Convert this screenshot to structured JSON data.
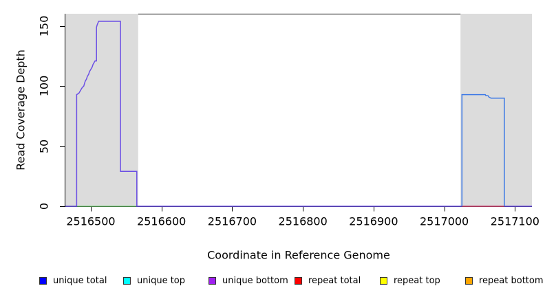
{
  "chart_data": {
    "type": "line",
    "title": "",
    "xlabel": "Coordinate in Reference Genome",
    "ylabel": "Read Coverage Depth",
    "xlim": [
      2516464,
      2517124
    ],
    "ylim": [
      0,
      160.3
    ],
    "x_ticks": [
      2516500,
      2516600,
      2516700,
      2516800,
      2516900,
      2517000,
      2517100
    ],
    "y_ticks": [
      0,
      50,
      100,
      150
    ],
    "grid": "off",
    "legend_position": "bottom",
    "frame_color": "#4d4d4d",
    "axis_color": "#000000",
    "shaded_regions": [
      {
        "name": "repeat-region-left",
        "x0": 2516464,
        "x1": 2516567,
        "color": "#dcdcdc"
      },
      {
        "name": "repeat-region-right",
        "x0": 2517023,
        "x1": 2517124,
        "color": "#dcdcdc"
      }
    ],
    "series": [
      {
        "name": "zero-baseline-left-green",
        "color": "#6fcf6f",
        "width": 1.2,
        "points": [
          [
            2516464,
            0
          ],
          [
            2516567,
            0
          ]
        ]
      },
      {
        "name": "unique-coverage-left-and-baseline",
        "color": "#6b4fe4",
        "width": 1.5,
        "points": [
          [
            2516464,
            0
          ],
          [
            2516480,
            0
          ],
          [
            2516480,
            93
          ],
          [
            2516483,
            94
          ],
          [
            2516484,
            95
          ],
          [
            2516485,
            96
          ],
          [
            2516487,
            98
          ],
          [
            2516488,
            99
          ],
          [
            2516490,
            100
          ],
          [
            2516491,
            102
          ],
          [
            2516492,
            104
          ],
          [
            2516494,
            106
          ],
          [
            2516495,
            108
          ],
          [
            2516497,
            110
          ],
          [
            2516498,
            112
          ],
          [
            2516500,
            114
          ],
          [
            2516502,
            116
          ],
          [
            2516503,
            118
          ],
          [
            2516505,
            120
          ],
          [
            2516506,
            121
          ],
          [
            2516508,
            121
          ],
          [
            2516508,
            149
          ],
          [
            2516509,
            151
          ],
          [
            2516511,
            154
          ],
          [
            2516542,
            154
          ],
          [
            2516542,
            29
          ],
          [
            2516565,
            29
          ],
          [
            2516565,
            0
          ],
          [
            2517124,
            0
          ]
        ]
      },
      {
        "name": "repeat-baseline-right-red",
        "color": "#e8414e",
        "width": 1.2,
        "points": [
          [
            2517025,
            0
          ],
          [
            2517085,
            0
          ]
        ]
      },
      {
        "name": "unique-coverage-right-blue",
        "color": "#3d79e6",
        "width": 1.5,
        "points": [
          [
            2517025,
            0
          ],
          [
            2517025,
            93
          ],
          [
            2517058,
            93
          ],
          [
            2517059,
            92
          ],
          [
            2517062,
            92
          ],
          [
            2517063,
            91
          ],
          [
            2517066,
            90
          ],
          [
            2517085,
            90
          ],
          [
            2517085,
            0
          ]
        ]
      }
    ],
    "legend": [
      {
        "label": "unique total",
        "color": "#0000ff"
      },
      {
        "label": "unique top",
        "color": "#00ffff"
      },
      {
        "label": "unique bottom",
        "color": "#a020f0"
      },
      {
        "label": "repeat total",
        "color": "#ff0000"
      },
      {
        "label": "repeat top",
        "color": "#ffff00"
      },
      {
        "label": "repeat bottom",
        "color": "#ffa500"
      }
    ]
  }
}
